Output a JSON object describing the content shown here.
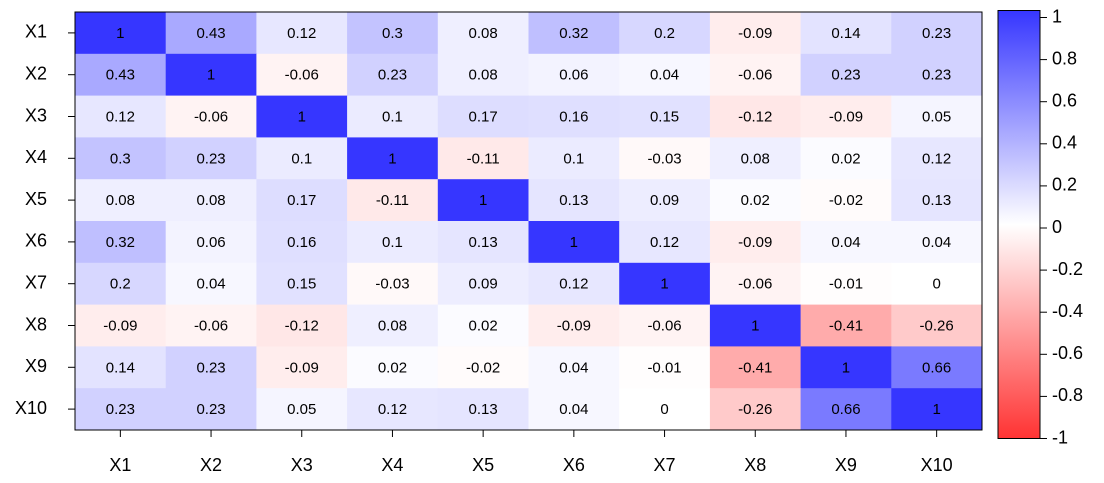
{
  "chart_data": {
    "type": "heatmap",
    "x": [
      "X1",
      "X2",
      "X3",
      "X4",
      "X5",
      "X6",
      "X7",
      "X8",
      "X9",
      "X10"
    ],
    "y": [
      "X1",
      "X2",
      "X3",
      "X4",
      "X5",
      "X6",
      "X7",
      "X8",
      "X9",
      "X10"
    ],
    "values": [
      [
        1,
        0.43,
        0.12,
        0.3,
        0.08,
        0.32,
        0.2,
        -0.09,
        0.14,
        0.23
      ],
      [
        0.43,
        1,
        -0.06,
        0.23,
        0.08,
        0.06,
        0.04,
        -0.06,
        0.23,
        0.23
      ],
      [
        0.12,
        -0.06,
        1,
        0.1,
        0.17,
        0.16,
        0.15,
        -0.12,
        -0.09,
        0.05
      ],
      [
        0.3,
        0.23,
        0.1,
        1,
        -0.11,
        0.1,
        -0.03,
        0.08,
        0.02,
        0.12
      ],
      [
        0.08,
        0.08,
        0.17,
        -0.11,
        1,
        0.13,
        0.09,
        0.02,
        -0.02,
        0.13
      ],
      [
        0.32,
        0.06,
        0.16,
        0.1,
        0.13,
        1,
        0.12,
        -0.09,
        0.04,
        0.04
      ],
      [
        0.2,
        0.04,
        0.15,
        -0.03,
        0.09,
        0.12,
        1,
        -0.06,
        -0.01,
        0
      ],
      [
        -0.09,
        -0.06,
        -0.12,
        0.08,
        0.02,
        -0.09,
        -0.06,
        1,
        -0.41,
        -0.26
      ],
      [
        0.14,
        0.23,
        -0.09,
        0.02,
        -0.02,
        0.04,
        -0.01,
        -0.41,
        1,
        0.66
      ],
      [
        0.23,
        0.23,
        0.05,
        0.12,
        0.13,
        0.04,
        0,
        -0.26,
        0.66,
        1
      ]
    ],
    "zlim": [
      -1,
      1
    ],
    "zticks": [
      1,
      0.8,
      0.6,
      0.4,
      0.2,
      0,
      -0.2,
      -0.4,
      -0.6,
      -0.8,
      -1
    ],
    "colors": {
      "low": "#ff3333",
      "mid": "#ffffff",
      "high": "#3636ff"
    }
  }
}
